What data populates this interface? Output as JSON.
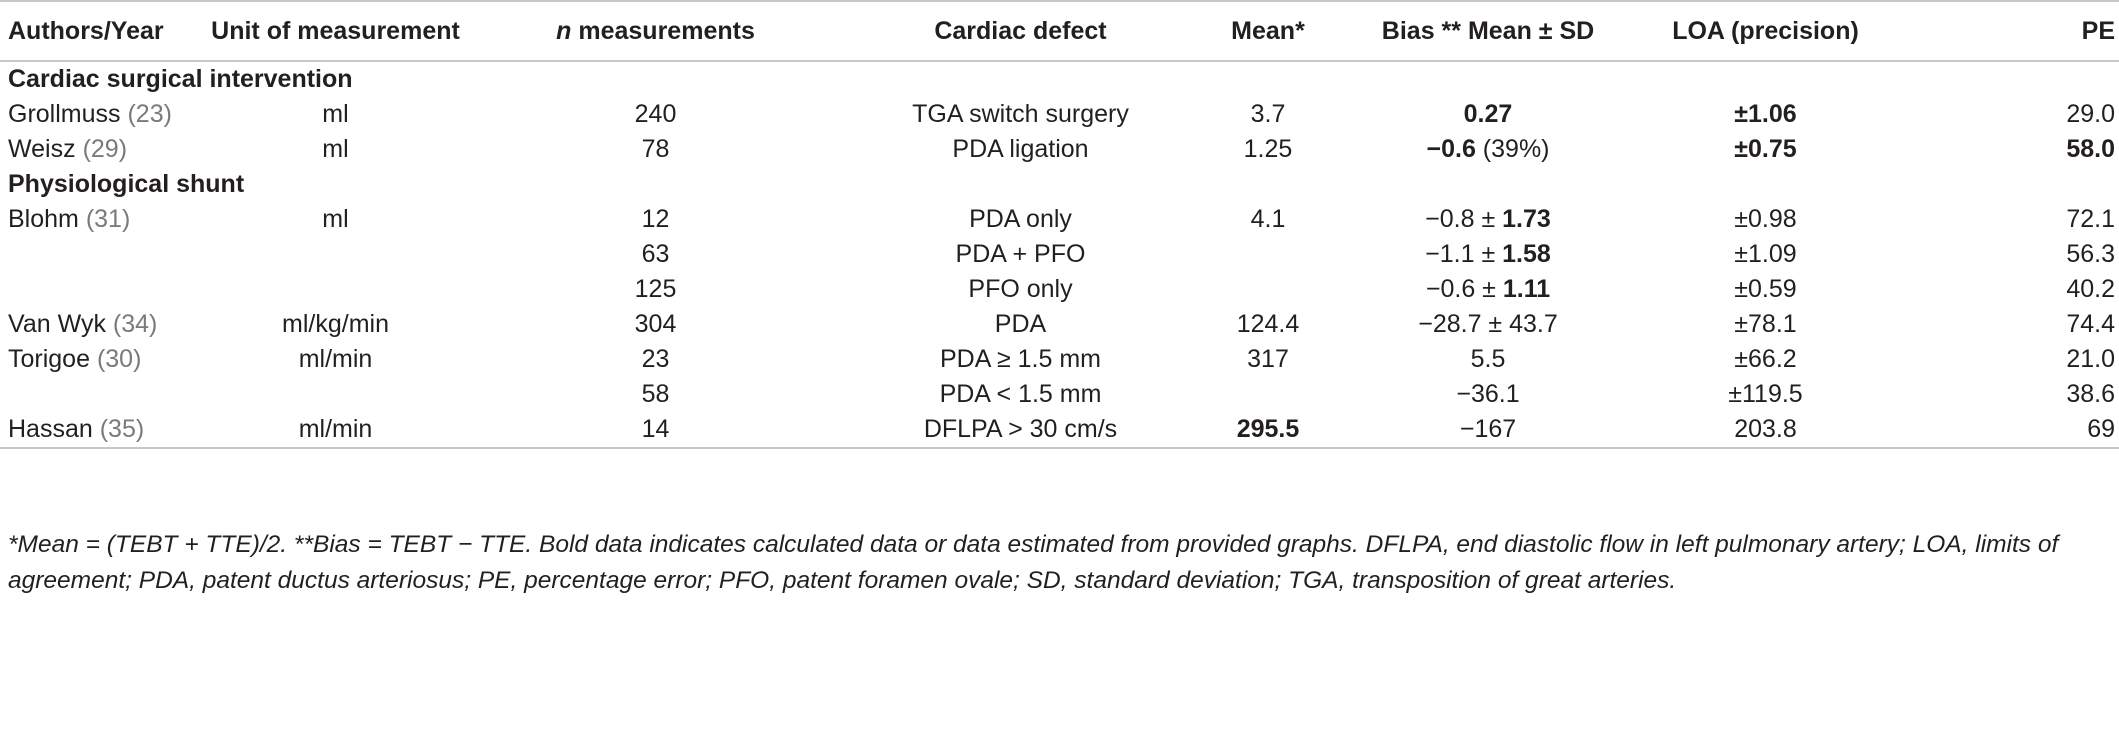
{
  "headers": [
    "Authors/Year",
    "Unit of measurement",
    "n",
    " measurements",
    "Cardiac defect",
    "Mean*",
    "Bias ** Mean ± SD",
    "LOA (precision)",
    "PE"
  ],
  "sections": [
    {
      "title": "Cardiac surgical intervention",
      "rows": [
        {
          "author": "Grollmuss",
          "ref": "(23)",
          "unit": "ml",
          "n": "240",
          "defect": "TGA switch surgery",
          "mean": "3.7",
          "bias_main": "0.27",
          "bias_rest": "",
          "loa": "±1.06",
          "pe": "29.0"
        },
        {
          "author": "Weisz",
          "ref": "(29)",
          "unit": "ml",
          "n": "78",
          "defect": "PDA ligation",
          "mean": "1.25",
          "bias_main": "−0.6",
          "bias_rest": " (39%)",
          "loa": "±0.75",
          "pe": "58.0"
        }
      ]
    },
    {
      "title": "Physiological shunt",
      "rows": [
        {
          "author": "Blohm",
          "ref": "(31)",
          "unit": "ml",
          "n": "12",
          "defect": "PDA only",
          "mean": "4.1",
          "bias_pre": "−0.8 ± ",
          "bias_sd": "1.73",
          "loa": "±0.98",
          "pe": "72.1"
        },
        {
          "n": "63",
          "defect": "PDA + PFO",
          "bias_pre": "−1.1 ± ",
          "bias_sd": "1.58",
          "loa": "±1.09",
          "pe": "56.3"
        },
        {
          "n": "125",
          "defect": "PFO only",
          "bias_pre": "−0.6 ± ",
          "bias_sd": "1.11",
          "loa": "±0.59",
          "pe": "40.2"
        },
        {
          "author": "Van Wyk",
          "ref": "(34)",
          "unit": "ml/kg/min",
          "n": "304",
          "defect": "PDA",
          "mean": "124.4",
          "bias": "−28.7 ± 43.7",
          "loa": "±78.1",
          "pe": "74.4"
        },
        {
          "author": "Torigoe",
          "ref": "(30)",
          "unit": "ml/min",
          "n": "23",
          "defect": "PDA ≥ 1.5 mm",
          "mean": "317",
          "bias": "5.5",
          "loa": "±66.2",
          "pe": "21.0"
        },
        {
          "n": "58",
          "defect": "PDA < 1.5 mm",
          "bias": "−36.1",
          "loa": "±119.5",
          "pe": "38.6"
        },
        {
          "author": "Hassan",
          "ref": "(35)",
          "unit": "ml/min",
          "n": "14",
          "defect": "DFLPA > 30 cm/s",
          "mean": "295.5",
          "bias": "−167",
          "loa": "203.8",
          "pe": "69"
        }
      ]
    }
  ],
  "footnote": "*Mean = (TEBT + TTE)/2. **Bias = TEBT − TTE. Bold data indicates calculated data or data estimated from provided graphs. DFLPA, end diastolic flow in left pulmonary artery; LOA, limits of agreement; PDA, patent ductus arteriosus; PE, percentage error; PFO, patent foramen ovale; SD, standard deviation; TGA, transposition of great arteries."
}
